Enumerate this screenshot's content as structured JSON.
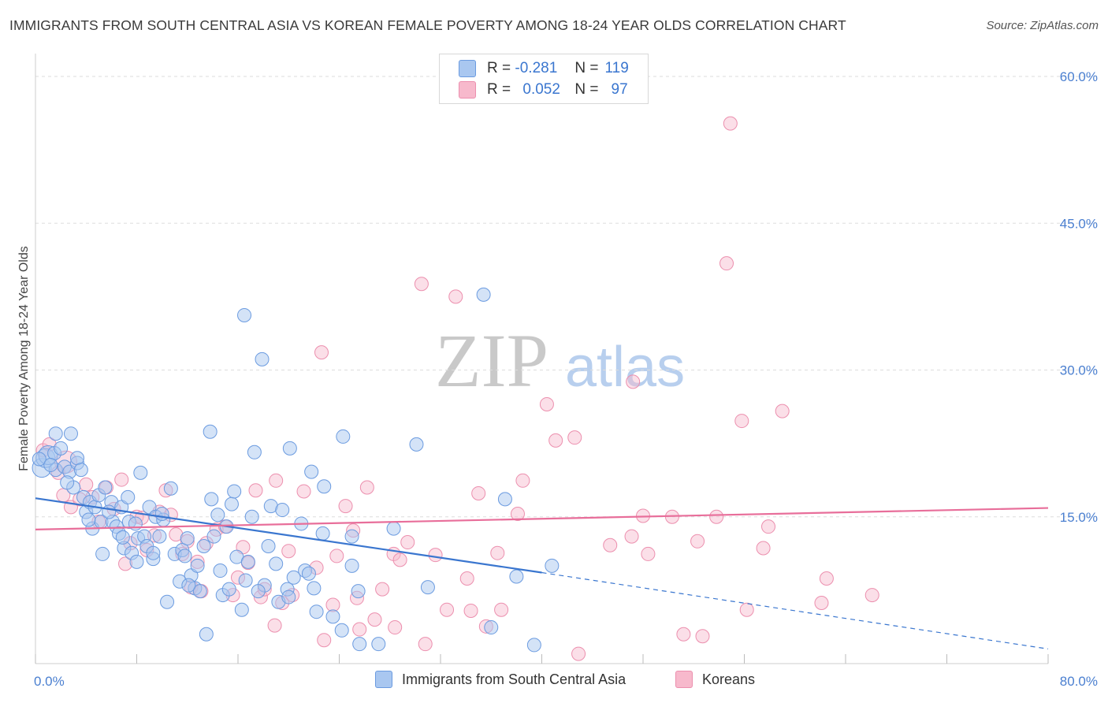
{
  "title": "IMMIGRANTS FROM SOUTH CENTRAL ASIA VS KOREAN FEMALE POVERTY AMONG 18-24 YEAR OLDS CORRELATION CHART",
  "source": "Source: ZipAtlas.com",
  "watermark": {
    "zip": "ZIP",
    "atlas": "atlas"
  },
  "legend": {
    "r_label": "R =",
    "n_label": "N =",
    "series1": {
      "r": "-0.281",
      "n": "119"
    },
    "series2": {
      "r": "0.052",
      "n": "97"
    }
  },
  "bottom_legend": {
    "series1": "Immigrants from South Central Asia",
    "series2": "Koreans"
  },
  "colors": {
    "blue_fill": "#a9c7f0",
    "blue_stroke": "#6b9be0",
    "blue_line": "#3a76cf",
    "pink_fill": "#f7b9cc",
    "pink_stroke": "#ec8fae",
    "pink_line": "#e86e9a",
    "tick_text": "#4a7fd0",
    "grid": "#dddddd"
  },
  "chart_data": {
    "type": "scatter",
    "title": "IMMIGRANTS FROM SOUTH CENTRAL ASIA VS KOREAN FEMALE POVERTY AMONG 18-24 YEAR OLDS CORRELATION CHART",
    "xlabel": "",
    "ylabel": "Female Poverty Among 18-24 Year Olds",
    "xlim": [
      0,
      80
    ],
    "ylim": [
      0,
      60
    ],
    "x_tick_labels": [
      "0.0%",
      "80.0%"
    ],
    "y_ticks": [
      15,
      30,
      45,
      60
    ],
    "y_tick_labels": [
      "15.0%",
      "30.0%",
      "45.0%",
      "60.0%"
    ],
    "grid": "horizontal dashed",
    "legend_position": "top-center",
    "series": [
      {
        "name": "Immigrants from South Central Asia",
        "r": -0.281,
        "n": 119,
        "trend": {
          "x0": 0,
          "y0": 16.9,
          "x1": 40,
          "y1": 9.3,
          "dashed_to_x": 80,
          "dashed_y1": 1.5
        },
        "points": [
          [
            0.5,
            20.0
          ],
          [
            0.8,
            21.0
          ],
          [
            1.0,
            21.3
          ],
          [
            1.5,
            21.5
          ],
          [
            1.6,
            23.5
          ],
          [
            1.6,
            19.8
          ],
          [
            2.0,
            22.0
          ],
          [
            2.3,
            20.1
          ],
          [
            2.7,
            19.6
          ],
          [
            2.8,
            23.5
          ],
          [
            3.3,
            20.5
          ],
          [
            3.3,
            21.0
          ],
          [
            3.0,
            18.0
          ],
          [
            3.8,
            17.0
          ],
          [
            4.0,
            15.5
          ],
          [
            4.3,
            16.5
          ],
          [
            4.5,
            13.8
          ],
          [
            4.7,
            16.0
          ],
          [
            5.0,
            17.2
          ],
          [
            5.2,
            14.5
          ],
          [
            5.3,
            11.2
          ],
          [
            5.5,
            18.0
          ],
          [
            6.0,
            16.5
          ],
          [
            6.1,
            14.5
          ],
          [
            6.4,
            14.0
          ],
          [
            6.6,
            13.3
          ],
          [
            6.8,
            16.0
          ],
          [
            7.0,
            11.8
          ],
          [
            7.3,
            17.0
          ],
          [
            7.4,
            14.5
          ],
          [
            7.6,
            11.3
          ],
          [
            7.9,
            14.3
          ],
          [
            8.1,
            12.8
          ],
          [
            8.3,
            19.5
          ],
          [
            8.6,
            13.0
          ],
          [
            8.8,
            12.0
          ],
          [
            9.0,
            16.0
          ],
          [
            9.3,
            10.7
          ],
          [
            9.3,
            11.3
          ],
          [
            9.5,
            15.0
          ],
          [
            9.8,
            13.0
          ],
          [
            10.1,
            14.7
          ],
          [
            10.4,
            6.3
          ],
          [
            10.7,
            17.9
          ],
          [
            11.0,
            11.2
          ],
          [
            11.4,
            8.4
          ],
          [
            11.6,
            11.6
          ],
          [
            11.8,
            11.0
          ],
          [
            12.0,
            12.8
          ],
          [
            12.3,
            9.0
          ],
          [
            12.6,
            7.7
          ],
          [
            12.8,
            10.0
          ],
          [
            13.0,
            7.4
          ],
          [
            13.3,
            12.0
          ],
          [
            13.5,
            3.0
          ],
          [
            13.8,
            23.7
          ],
          [
            13.9,
            16.8
          ],
          [
            14.1,
            13.0
          ],
          [
            14.4,
            15.2
          ],
          [
            14.8,
            7.0
          ],
          [
            15.1,
            14.0
          ],
          [
            15.3,
            7.6
          ],
          [
            15.5,
            16.3
          ],
          [
            15.7,
            17.6
          ],
          [
            15.9,
            10.9
          ],
          [
            16.3,
            5.5
          ],
          [
            16.5,
            35.6
          ],
          [
            16.6,
            8.5
          ],
          [
            16.8,
            10.4
          ],
          [
            17.1,
            15.0
          ],
          [
            17.3,
            21.6
          ],
          [
            17.9,
            31.1
          ],
          [
            18.1,
            8.0
          ],
          [
            18.4,
            12.0
          ],
          [
            18.6,
            16.1
          ],
          [
            19.0,
            10.2
          ],
          [
            19.2,
            6.3
          ],
          [
            19.5,
            15.7
          ],
          [
            19.9,
            7.6
          ],
          [
            20.0,
            6.8
          ],
          [
            20.1,
            22.0
          ],
          [
            20.4,
            8.8
          ],
          [
            21.0,
            14.3
          ],
          [
            21.3,
            9.5
          ],
          [
            21.8,
            19.6
          ],
          [
            22.0,
            7.7
          ],
          [
            22.2,
            5.3
          ],
          [
            22.7,
            13.3
          ],
          [
            22.8,
            18.1
          ],
          [
            23.5,
            4.8
          ],
          [
            24.2,
            3.4
          ],
          [
            24.3,
            23.2
          ],
          [
            25.0,
            13.0
          ],
          [
            25.0,
            10.0
          ],
          [
            25.5,
            7.4
          ],
          [
            25.6,
            2.0
          ],
          [
            27.1,
            2.0
          ],
          [
            28.3,
            13.8
          ],
          [
            30.1,
            22.4
          ],
          [
            31.0,
            7.8
          ],
          [
            35.4,
            37.7
          ],
          [
            36.0,
            3.7
          ],
          [
            37.1,
            16.8
          ],
          [
            38.0,
            8.9
          ],
          [
            39.4,
            1.9
          ],
          [
            40.8,
            10.0
          ],
          [
            0.3,
            20.9
          ],
          [
            1.2,
            20.3
          ],
          [
            2.5,
            18.5
          ],
          [
            3.6,
            19.8
          ],
          [
            4.2,
            14.7
          ],
          [
            5.8,
            15.5
          ],
          [
            6.9,
            12.9
          ],
          [
            8.0,
            10.4
          ],
          [
            10.0,
            15.3
          ],
          [
            12.1,
            8.0
          ],
          [
            14.6,
            9.5
          ],
          [
            17.6,
            7.4
          ],
          [
            21.6,
            9.2
          ]
        ]
      },
      {
        "name": "Koreans",
        "r": 0.052,
        "n": 97,
        "trend": {
          "x0": 0,
          "y0": 13.7,
          "x1": 80,
          "y1": 15.9
        },
        "points": [
          [
            0.6,
            21.8
          ],
          [
            1.1,
            22.4
          ],
          [
            1.8,
            19.5
          ],
          [
            2.2,
            17.2
          ],
          [
            2.8,
            16.0
          ],
          [
            3.5,
            16.8
          ],
          [
            4.0,
            18.3
          ],
          [
            4.5,
            17.0
          ],
          [
            5.0,
            14.5
          ],
          [
            5.6,
            18.0
          ],
          [
            6.2,
            15.8
          ],
          [
            6.8,
            18.8
          ],
          [
            7.1,
            10.2
          ],
          [
            7.5,
            12.3
          ],
          [
            8.0,
            15.0
          ],
          [
            8.4,
            14.9
          ],
          [
            8.8,
            11.6
          ],
          [
            9.4,
            13.1
          ],
          [
            9.8,
            15.5
          ],
          [
            10.3,
            17.7
          ],
          [
            10.7,
            15.2
          ],
          [
            11.1,
            13.2
          ],
          [
            11.6,
            11.2
          ],
          [
            12.0,
            12.5
          ],
          [
            12.3,
            7.8
          ],
          [
            12.8,
            10.4
          ],
          [
            13.1,
            7.4
          ],
          [
            13.5,
            12.3
          ],
          [
            14.3,
            13.7
          ],
          [
            15.0,
            14.0
          ],
          [
            15.6,
            7.0
          ],
          [
            16.0,
            8.8
          ],
          [
            16.4,
            11.9
          ],
          [
            16.8,
            10.3
          ],
          [
            17.4,
            17.7
          ],
          [
            17.8,
            6.8
          ],
          [
            18.1,
            7.6
          ],
          [
            18.9,
            3.9
          ],
          [
            19.0,
            18.7
          ],
          [
            19.5,
            6.2
          ],
          [
            20.0,
            11.5
          ],
          [
            20.3,
            7.0
          ],
          [
            21.2,
            17.6
          ],
          [
            22.2,
            9.8
          ],
          [
            22.6,
            31.8
          ],
          [
            22.8,
            2.4
          ],
          [
            23.5,
            6.0
          ],
          [
            23.8,
            11.0
          ],
          [
            24.5,
            16.1
          ],
          [
            25.1,
            13.6
          ],
          [
            25.6,
            3.5
          ],
          [
            25.4,
            6.7
          ],
          [
            26.2,
            18.0
          ],
          [
            26.8,
            4.5
          ],
          [
            27.4,
            7.6
          ],
          [
            28.3,
            11.2
          ],
          [
            28.4,
            3.7
          ],
          [
            28.8,
            10.6
          ],
          [
            29.4,
            12.4
          ],
          [
            30.5,
            38.8
          ],
          [
            30.8,
            2.0
          ],
          [
            31.6,
            11.1
          ],
          [
            32.5,
            5.5
          ],
          [
            33.2,
            37.5
          ],
          [
            34.1,
            8.7
          ],
          [
            34.4,
            5.4
          ],
          [
            35.0,
            17.4
          ],
          [
            35.6,
            3.8
          ],
          [
            36.5,
            11.3
          ],
          [
            36.8,
            5.5
          ],
          [
            38.1,
            15.3
          ],
          [
            38.5,
            18.7
          ],
          [
            40.4,
            26.5
          ],
          [
            41.1,
            22.8
          ],
          [
            42.6,
            23.1
          ],
          [
            42.9,
            1.0
          ],
          [
            45.4,
            12.1
          ],
          [
            47.1,
            13.0
          ],
          [
            47.2,
            28.8
          ],
          [
            48.0,
            15.1
          ],
          [
            48.4,
            11.2
          ],
          [
            50.3,
            15.0
          ],
          [
            51.2,
            3.0
          ],
          [
            52.3,
            12.5
          ],
          [
            52.7,
            2.8
          ],
          [
            53.8,
            15.0
          ],
          [
            54.6,
            40.9
          ],
          [
            54.9,
            55.2
          ],
          [
            55.8,
            24.8
          ],
          [
            56.2,
            5.5
          ],
          [
            57.5,
            11.8
          ],
          [
            57.9,
            14.0
          ],
          [
            59.0,
            25.8
          ],
          [
            62.1,
            6.2
          ],
          [
            62.5,
            8.7
          ],
          [
            66.1,
            7.0
          ],
          [
            2.4,
            20.6
          ]
        ]
      }
    ]
  }
}
